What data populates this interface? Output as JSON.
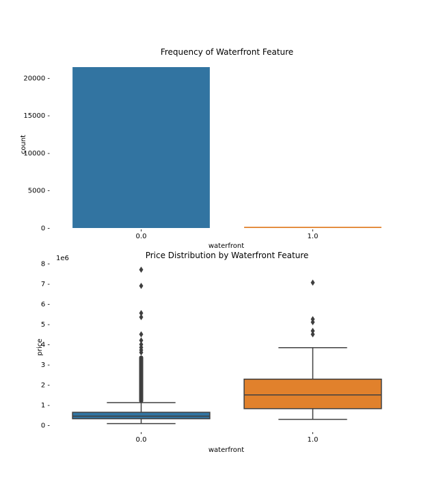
{
  "chart_data": [
    {
      "type": "bar",
      "title": "Frequency of Waterfront Feature",
      "xlabel": "waterfront",
      "ylabel": "count",
      "categories": [
        "0.0",
        "1.0"
      ],
      "values": [
        21450,
        163
      ],
      "colors": [
        "#3274a1",
        "#e1812c"
      ],
      "ylim": [
        0,
        21450
      ],
      "yticks": [
        0,
        5000,
        10000,
        15000,
        20000
      ],
      "grid": false,
      "legend": "none"
    },
    {
      "type": "box",
      "title": "Price Distribution by Waterfront Feature",
      "xlabel": "waterfront",
      "ylabel": "price",
      "y_scale_label": "1e6",
      "categories": [
        "0.0",
        "1.0"
      ],
      "colors": [
        "#3274a1",
        "#e1812c"
      ],
      "ylim": [
        0,
        8
      ],
      "yticks": [
        0,
        1,
        2,
        3,
        4,
        5,
        6,
        7,
        8
      ],
      "grid": false,
      "legend": "none",
      "boxes": [
        {
          "category": "0.0",
          "whisker_low": 0.08,
          "q1": 0.32,
          "median": 0.45,
          "q3": 0.64,
          "whisker_high": 1.12,
          "outlier_range": [
            1.1,
            3.45
          ],
          "outliers": [
            3.6,
            3.72,
            3.85,
            4.0,
            4.2,
            4.5,
            5.35,
            5.55,
            6.9,
            7.7
          ]
        },
        {
          "category": "1.0",
          "whisker_low": 0.29,
          "q1": 0.82,
          "median": 1.5,
          "q3": 2.28,
          "whisker_high": 3.84,
          "outliers": [
            4.5,
            4.67,
            5.1,
            5.25,
            7.06
          ]
        }
      ]
    }
  ]
}
